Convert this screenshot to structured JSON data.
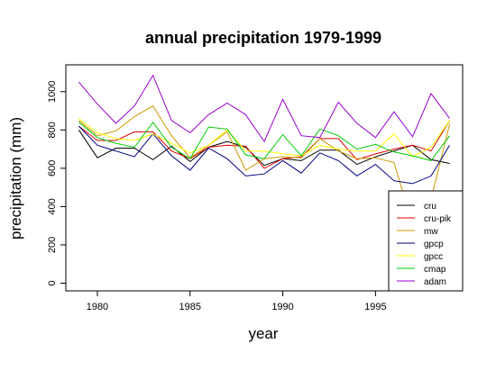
{
  "chart_data": {
    "type": "line",
    "title": "annual precipitation 1979-1999",
    "xlabel": "year",
    "ylabel": "precipitation (mm)",
    "xlim": [
      1978.3,
      1999.7
    ],
    "ylim": [
      -40,
      1140
    ],
    "xticks": [
      1980,
      1985,
      1990,
      1995
    ],
    "yticks": [
      0,
      200,
      400,
      600,
      800,
      1000
    ],
    "grid": false,
    "legend_position": "bottom-right",
    "x": [
      1979,
      1980,
      1981,
      1982,
      1983,
      1984,
      1985,
      1986,
      1987,
      1988,
      1989,
      1990,
      1991,
      1992,
      1993,
      1994,
      1995,
      1996,
      1997,
      1998,
      1999
    ],
    "series": [
      {
        "name": "cru",
        "color": "#000000",
        "values": [
          800,
          655,
          705,
          705,
          645,
          715,
          635,
          710,
          740,
          710,
          615,
          650,
          640,
          695,
          695,
          620,
          660,
          690,
          720,
          645,
          625
        ]
      },
      {
        "name": "cru-pik",
        "color": "#dd0000",
        "values": [
          820,
          745,
          745,
          790,
          790,
          690,
          650,
          710,
          720,
          715,
          600,
          650,
          660,
          755,
          755,
          645,
          675,
          700,
          720,
          690,
          850
        ]
      },
      {
        "name": "mw",
        "color": "#cc9900",
        "values": [
          850,
          770,
          795,
          870,
          925,
          770,
          655,
          720,
          790,
          590,
          650,
          660,
          655,
          755,
          690,
          650,
          655,
          630,
          305,
          440,
          830
        ]
      },
      {
        "name": "gpcp",
        "color": "#000080",
        "values": [
          820,
          720,
          690,
          660,
          780,
          665,
          590,
          705,
          650,
          560,
          570,
          640,
          575,
          680,
          640,
          560,
          620,
          535,
          520,
          560,
          720
        ]
      },
      {
        "name": "gpcc",
        "color": "#ffff00",
        "values": [
          860,
          785,
          755,
          745,
          780,
          730,
          680,
          720,
          800,
          690,
          690,
          675,
          665,
          720,
          700,
          690,
          690,
          780,
          660,
          710,
          850
        ]
      },
      {
        "name": "cmap",
        "color": "#00cc00",
        "values": [
          840,
          760,
          730,
          710,
          840,
          710,
          650,
          815,
          805,
          670,
          650,
          775,
          665,
          805,
          770,
          700,
          725,
          685,
          665,
          640,
          770
        ]
      },
      {
        "name": "adam",
        "color": "#9900cc",
        "values": [
          1050,
          935,
          835,
          925,
          1085,
          850,
          785,
          880,
          940,
          880,
          740,
          960,
          770,
          760,
          945,
          835,
          760,
          895,
          765,
          990,
          860
        ]
      }
    ]
  }
}
